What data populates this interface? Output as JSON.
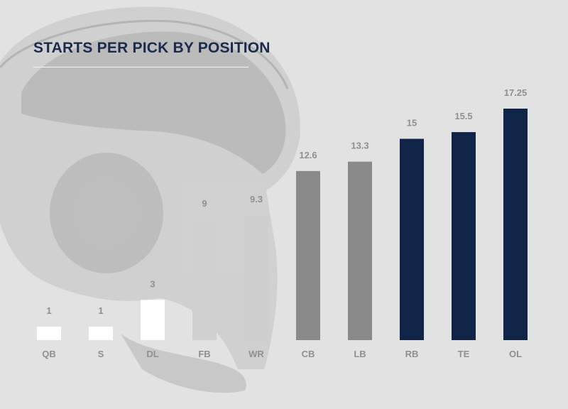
{
  "chart_data": {
    "type": "bar",
    "title": "STARTS PER PICK BY POSITION",
    "categories": [
      "QB",
      "S",
      "DL",
      "FB",
      "WR",
      "CB",
      "LB",
      "RB",
      "TE",
      "OL"
    ],
    "values": [
      1,
      1,
      3,
      9,
      9.3,
      12.6,
      13.3,
      15,
      15.5,
      17.25
    ],
    "value_labels": [
      "1",
      "1",
      "3",
      "9",
      "9.3",
      "12.6",
      "13.3",
      "15",
      "15.5",
      "17.25"
    ],
    "bar_colors": [
      "#ffffff",
      "#ffffff",
      "#ffffff",
      "#d0d0d0",
      "#cecece",
      "#8a8a8a",
      "#8a8a8a",
      "#0f2447",
      "#0f2447",
      "#0f2447"
    ],
    "ylim": [
      0,
      17.25
    ],
    "grid": false,
    "legend": "none",
    "xlabel": "",
    "ylabel": ""
  },
  "colors": {
    "background": "#e2e2e2",
    "title": "#1b2b4d",
    "labels": "#8f8f8f"
  },
  "decoration": {
    "background_image": "helmet-icon"
  }
}
